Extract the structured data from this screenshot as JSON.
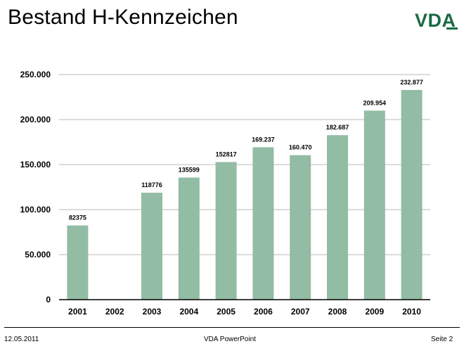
{
  "slide": {
    "title": "Bestand H-Kennzeichen",
    "logo": "VDA",
    "footer_date": "12.05.2011",
    "footer_center": "VDA PowerPoint",
    "footer_page": "Seite 2"
  },
  "colors": {
    "bar": "#92bca3",
    "grid": "#b8b8b8",
    "axis": "#000000",
    "logo": "#1a6b45"
  },
  "chart_data": {
    "type": "bar",
    "categories": [
      "2001",
      "2002",
      "2003",
      "2004",
      "2005",
      "2006",
      "2007",
      "2008",
      "2009",
      "2010"
    ],
    "values": [
      82375,
      null,
      118776,
      135599,
      152817,
      169237,
      160470,
      182687,
      209954,
      232877
    ],
    "data_labels": [
      "82375",
      "",
      "118776",
      "135599",
      "152817",
      "169.237",
      "160.470",
      "182.687",
      "209.954",
      "232.877"
    ],
    "y_ticks": [
      0,
      50000,
      100000,
      150000,
      200000,
      250000
    ],
    "y_tick_labels": [
      "0",
      "50.000",
      "100.000",
      "150.000",
      "200.000",
      "250.000"
    ],
    "ylim": [
      0,
      250000
    ],
    "grid": true,
    "legend": "none"
  }
}
